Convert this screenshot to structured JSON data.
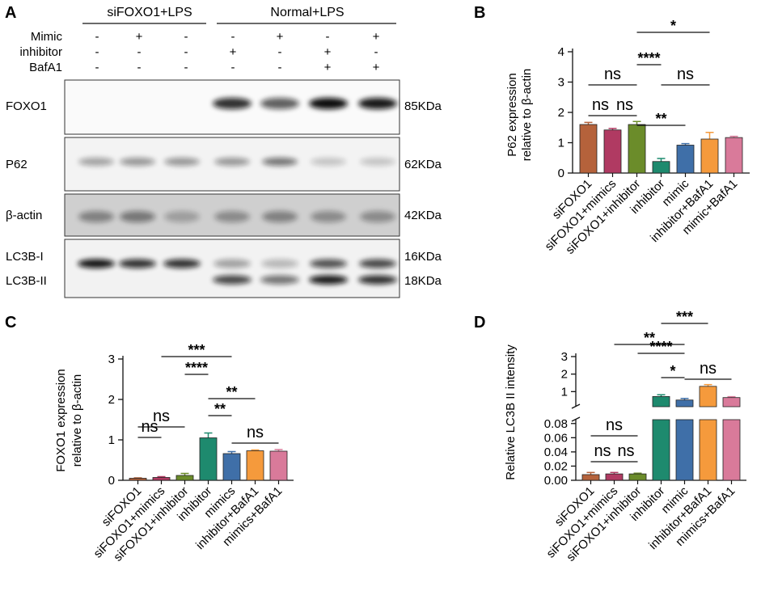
{
  "panels": {
    "a": {
      "letter": "A",
      "group_labels": [
        "siFOXO1+LPS",
        "Normal+LPS"
      ],
      "treatment_rows": [
        {
          "label": "Mimic",
          "signs": [
            "-",
            "+",
            "-",
            "-",
            "+",
            "-",
            "+"
          ]
        },
        {
          "label": "inhibitor",
          "signs": [
            "-",
            "-",
            "-",
            "+",
            "-",
            "+",
            "-"
          ]
        },
        {
          "label": "BafA1",
          "signs": [
            "-",
            "-",
            "-",
            "-",
            "-",
            "+",
            "+"
          ]
        }
      ],
      "blots": [
        {
          "label": "FOXO1",
          "size": "85KDa"
        },
        {
          "label": "P62",
          "size": "62KDa"
        },
        {
          "label": "β-actin",
          "size": "42KDa"
        },
        {
          "label": "LC3B-I",
          "size": "16KDa"
        },
        {
          "label": "LC3B-II",
          "size": "18KDa"
        }
      ]
    },
    "b": {
      "letter": "B"
    },
    "c": {
      "letter": "C"
    },
    "d": {
      "letter": "D"
    }
  },
  "colors": {
    "siFOXO1": "#b5623b",
    "siFOXO1+mimics": "#b03a62",
    "siFOXO1+inhibitor": "#6b8c2a",
    "inhibitor": "#1e8a6e",
    "mimic": "#3f6fa8",
    "inhibitor+BafA1": "#f59a3c",
    "mimic+BafA1": "#d97a9a"
  },
  "chart_data": [
    {
      "panel": "B",
      "type": "bar",
      "categories": [
        "siFOXO1",
        "siFOXO1+mimics",
        "siFOXO1+inhibitor",
        "inhibitor",
        "mimic",
        "inhibitor+BafA1",
        "mimic+BafA1"
      ],
      "values": [
        1.6,
        1.42,
        1.6,
        0.38,
        0.92,
        1.12,
        1.17
      ],
      "errors": [
        0.07,
        0.05,
        0.1,
        0.1,
        0.05,
        0.22,
        0.04
      ],
      "ylabel_line1": "P62 expression",
      "ylabel_line2": "relative to  β-actin",
      "ylim": [
        0,
        4
      ],
      "yticks": [
        "0",
        "1",
        "2",
        "3",
        "4"
      ],
      "annotations": [
        {
          "text": "*",
          "from": 3,
          "to": 6
        },
        {
          "text": "****",
          "from": 3,
          "to": 4
        },
        {
          "text": "ns",
          "from": 1,
          "to": 3
        },
        {
          "text": "ns",
          "from": 4,
          "to": 6
        },
        {
          "text": "ns",
          "from": 1,
          "to": 2
        },
        {
          "text": "ns",
          "from": 2,
          "to": 3
        },
        {
          "text": "**",
          "from": 3,
          "to": 5
        }
      ]
    },
    {
      "panel": "C",
      "type": "bar",
      "categories": [
        "siFOXO1",
        "siFOXO1+mimics",
        "siFOXO1+inhibitor",
        "inhibitor",
        "mimics",
        "inhibitor+BafA1",
        "mimics+BafA1"
      ],
      "values": [
        0.05,
        0.07,
        0.12,
        1.05,
        0.66,
        0.73,
        0.72
      ],
      "errors": [
        0.01,
        0.02,
        0.05,
        0.12,
        0.05,
        0.02,
        0.04
      ],
      "ylabel_line1": "FOXO1 expression",
      "ylabel_line2": "relative to  β-actin",
      "ylim": [
        0,
        3
      ],
      "yticks": [
        "0",
        "1",
        "2",
        "3"
      ],
      "annotations": [
        {
          "text": "***",
          "from": 2,
          "to": 5
        },
        {
          "text": "****",
          "from": 3,
          "to": 4
        },
        {
          "text": "**",
          "from": 4,
          "to": 6
        },
        {
          "text": "**",
          "from": 4,
          "to": 5
        },
        {
          "text": "ns",
          "from": 1,
          "to": 3
        },
        {
          "text": "ns",
          "from": 1,
          "to": 2
        },
        {
          "text": "ns",
          "from": 5,
          "to": 7
        }
      ]
    },
    {
      "panel": "D",
      "type": "bar",
      "broken_axis": true,
      "categories": [
        "siFOXO1",
        "siFOXO1+mimics",
        "siFOXO1+inhibitor",
        "inhibitor",
        "mimic",
        "inhibitor+BafA1",
        "mimics+BafA1"
      ],
      "values": [
        0.008,
        0.009,
        0.009,
        0.72,
        0.52,
        1.3,
        0.66
      ],
      "errors": [
        0.003,
        0.002,
        0.001,
        0.1,
        0.09,
        0.1,
        0.05
      ],
      "ylabel": "Relative  LC3B  II intensity",
      "upper_ylim": [
        0,
        3
      ],
      "upper_yticks": [
        "1",
        "2",
        "3"
      ],
      "lower_ylim": [
        0,
        0.09
      ],
      "lower_yticks": [
        "0.00",
        "0.02",
        "0.04",
        "0.06",
        "0.08"
      ],
      "annotations": [
        {
          "text": "***",
          "from": 4,
          "to": 6
        },
        {
          "text": "**",
          "from": 2,
          "to": 5
        },
        {
          "text": "****",
          "from": 3,
          "to": 5
        },
        {
          "text": "*",
          "from": 4,
          "to": 5
        },
        {
          "text": "ns",
          "from": 5,
          "to": 7
        },
        {
          "text": "ns",
          "from": 1,
          "to": 3
        },
        {
          "text": "ns",
          "from": 1,
          "to": 2
        },
        {
          "text": "ns",
          "from": 2,
          "to": 3
        }
      ]
    }
  ]
}
